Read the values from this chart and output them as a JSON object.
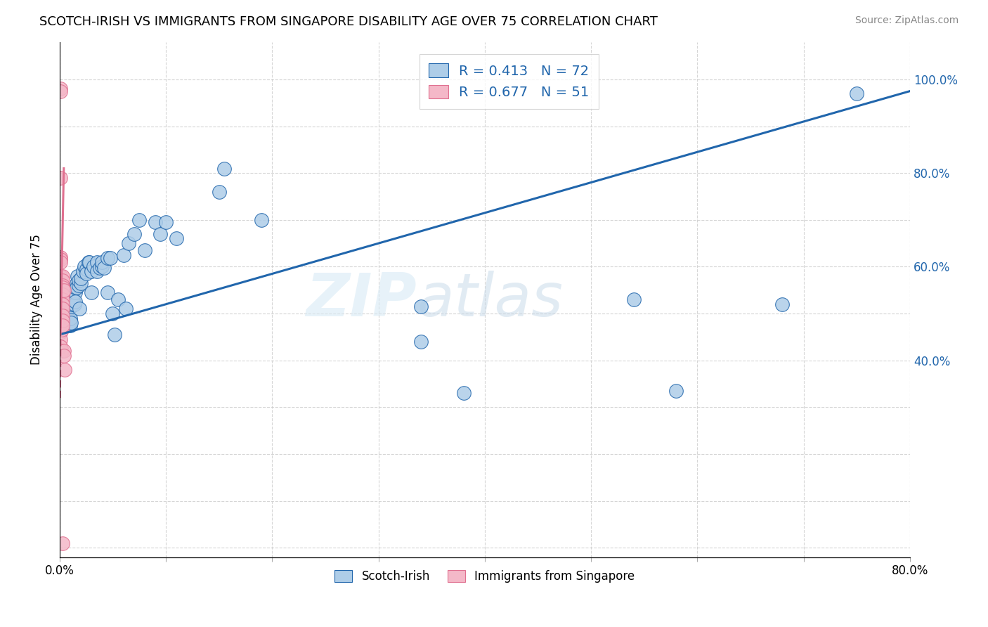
{
  "title": "SCOTCH-IRISH VS IMMIGRANTS FROM SINGAPORE DISABILITY AGE OVER 75 CORRELATION CHART",
  "source": "Source: ZipAtlas.com",
  "ylabel": "Disability Age Over 75",
  "xlim": [
    0.0,
    0.8
  ],
  "ylim": [
    -0.02,
    1.08
  ],
  "watermark": "ZIPatlas",
  "legend_blue_label": "Scotch-Irish",
  "legend_pink_label": "Immigrants from Singapore",
  "R_blue": 0.413,
  "N_blue": 72,
  "R_pink": 0.677,
  "N_pink": 51,
  "blue_color": "#aecde8",
  "pink_color": "#f4b8c8",
  "trend_blue_color": "#2166ac",
  "trend_pink_color": "#e07090",
  "blue_scatter_x": [
    0.003,
    0.004,
    0.005,
    0.005,
    0.006,
    0.006,
    0.007,
    0.007,
    0.008,
    0.009,
    0.009,
    0.01,
    0.01,
    0.01,
    0.011,
    0.011,
    0.012,
    0.012,
    0.013,
    0.014,
    0.015,
    0.015,
    0.015,
    0.016,
    0.016,
    0.017,
    0.018,
    0.018,
    0.019,
    0.02,
    0.02,
    0.022,
    0.023,
    0.025,
    0.025,
    0.027,
    0.028,
    0.03,
    0.03,
    0.032,
    0.035,
    0.035,
    0.038,
    0.04,
    0.04,
    0.042,
    0.045,
    0.045,
    0.048,
    0.05,
    0.052,
    0.055,
    0.06,
    0.062,
    0.065,
    0.07,
    0.075,
    0.08,
    0.09,
    0.095,
    0.1,
    0.11,
    0.15,
    0.155,
    0.19,
    0.34,
    0.34,
    0.38,
    0.54,
    0.58,
    0.68,
    0.75
  ],
  "blue_scatter_y": [
    0.49,
    0.49,
    0.49,
    0.48,
    0.49,
    0.48,
    0.49,
    0.495,
    0.49,
    0.49,
    0.48,
    0.485,
    0.475,
    0.49,
    0.48,
    0.515,
    0.52,
    0.54,
    0.53,
    0.52,
    0.545,
    0.555,
    0.525,
    0.565,
    0.555,
    0.58,
    0.56,
    0.57,
    0.51,
    0.565,
    0.575,
    0.59,
    0.6,
    0.595,
    0.585,
    0.61,
    0.61,
    0.59,
    0.545,
    0.6,
    0.61,
    0.59,
    0.598,
    0.6,
    0.61,
    0.598,
    0.618,
    0.545,
    0.618,
    0.5,
    0.455,
    0.53,
    0.625,
    0.51,
    0.65,
    0.67,
    0.7,
    0.635,
    0.695,
    0.67,
    0.695,
    0.66,
    0.76,
    0.81,
    0.7,
    0.515,
    0.44,
    0.33,
    0.53,
    0.335,
    0.52,
    0.97
  ],
  "pink_scatter_x": [
    0.001,
    0.001,
    0.001,
    0.001,
    0.001,
    0.001,
    0.001,
    0.001,
    0.001,
    0.001,
    0.001,
    0.001,
    0.001,
    0.001,
    0.001,
    0.001,
    0.001,
    0.001,
    0.001,
    0.001,
    0.001,
    0.001,
    0.002,
    0.002,
    0.002,
    0.002,
    0.002,
    0.002,
    0.002,
    0.002,
    0.002,
    0.002,
    0.002,
    0.002,
    0.002,
    0.003,
    0.003,
    0.003,
    0.003,
    0.003,
    0.003,
    0.003,
    0.003,
    0.003,
    0.003,
    0.003,
    0.003,
    0.004,
    0.004,
    0.004,
    0.005
  ],
  "pink_scatter_y": [
    0.98,
    0.975,
    0.79,
    0.62,
    0.615,
    0.61,
    0.58,
    0.565,
    0.56,
    0.555,
    0.55,
    0.545,
    0.54,
    0.535,
    0.53,
    0.52,
    0.51,
    0.49,
    0.475,
    0.46,
    0.445,
    0.43,
    0.56,
    0.555,
    0.55,
    0.54,
    0.535,
    0.53,
    0.52,
    0.51,
    0.5,
    0.49,
    0.48,
    0.465,
    0.42,
    0.58,
    0.57,
    0.56,
    0.555,
    0.54,
    0.53,
    0.52,
    0.51,
    0.495,
    0.485,
    0.475,
    0.01,
    0.55,
    0.42,
    0.41,
    0.38
  ]
}
